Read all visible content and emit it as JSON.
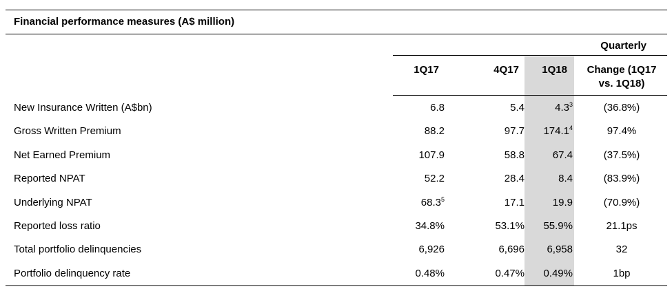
{
  "table": {
    "title": "Financial performance measures (A$ million)",
    "group_header": "Quarterly",
    "columns": [
      "1Q17",
      "4Q17",
      "1Q18",
      "Change (1Q17 vs. 1Q18)"
    ],
    "change_header_line1": "Change (1Q17",
    "change_header_line2": "vs. 1Q18)",
    "highlight_color": "#d9d9d9",
    "rows": [
      {
        "label": "New Insurance Written (A$bn)",
        "c1": "6.8",
        "c1_sup": "",
        "c2": "5.4",
        "c3": "4.3",
        "c3_sup": "3",
        "c4": "(36.8%)"
      },
      {
        "label": "Gross Written Premium",
        "c1": "88.2",
        "c1_sup": "",
        "c2": "97.7",
        "c3": "174.1",
        "c3_sup": "4",
        "c4": "97.4%"
      },
      {
        "label": "Net Earned Premium",
        "c1": "107.9",
        "c1_sup": "",
        "c2": "58.8",
        "c3": "67.4",
        "c3_sup": "",
        "c4": "(37.5%)"
      },
      {
        "label": "Reported NPAT",
        "c1": "52.2",
        "c1_sup": "",
        "c2": "28.4",
        "c3": "8.4",
        "c3_sup": "",
        "c4": "(83.9%)"
      },
      {
        "label": "Underlying NPAT",
        "c1": "68.3",
        "c1_sup": "5",
        "c2": "17.1",
        "c3": "19.9",
        "c3_sup": "",
        "c4": "(70.9%)"
      },
      {
        "label": "Reported loss ratio",
        "c1": "34.8%",
        "c1_sup": "",
        "c2": "53.1%",
        "c3": "55.9%",
        "c3_sup": "",
        "c4": "21.1ps"
      },
      {
        "label": "Total portfolio delinquencies",
        "c1": "6,926",
        "c1_sup": "",
        "c2": "6,696",
        "c3": "6,958",
        "c3_sup": "",
        "c4": "32"
      },
      {
        "label": "Portfolio delinquency rate",
        "c1": "0.48%",
        "c1_sup": "",
        "c2": "0.47%",
        "c3": "0.49%",
        "c3_sup": "",
        "c4": "1bp"
      }
    ]
  }
}
